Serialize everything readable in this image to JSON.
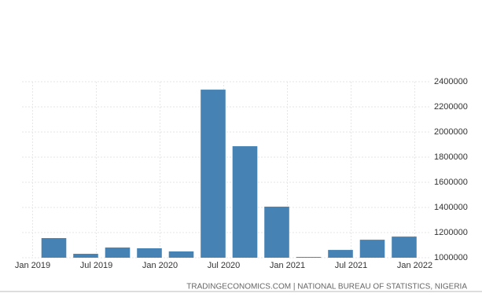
{
  "chart_data": {
    "type": "bar",
    "x": [
      "2019-03",
      "2019-06",
      "2019-09",
      "2019-12",
      "2020-03",
      "2020-06",
      "2020-09",
      "2020-12",
      "2021-03",
      "2021-06",
      "2021-09",
      "2021-12"
    ],
    "values": [
      1156000,
      1031000,
      1081000,
      1075000,
      1050000,
      2337000,
      1887000,
      1406000,
      1006000,
      1062000,
      1143000,
      1168000
    ],
    "color": "#4682b4",
    "xlim": [
      "2018-12",
      "2022-02"
    ],
    "xticks": [
      {
        "value": "2019-01",
        "label": "Jan 2019"
      },
      {
        "value": "2019-07",
        "label": "Jul 2019"
      },
      {
        "value": "2020-01",
        "label": "Jan 2020"
      },
      {
        "value": "2020-07",
        "label": "Jul 2020"
      },
      {
        "value": "2021-01",
        "label": "Jan 2021"
      },
      {
        "value": "2021-07",
        "label": "Jul 2021"
      },
      {
        "value": "2022-01",
        "label": "Jan 2022"
      }
    ],
    "ylim": [
      1000000,
      2400000
    ],
    "yticks": [
      1000000,
      1200000,
      1400000,
      1600000,
      1800000,
      2000000,
      2200000,
      2400000
    ],
    "grid": true,
    "source": "TRADINGECONOMICS.COM | NATIONAL BUREAU OF STATISTICS, NIGERIA"
  }
}
